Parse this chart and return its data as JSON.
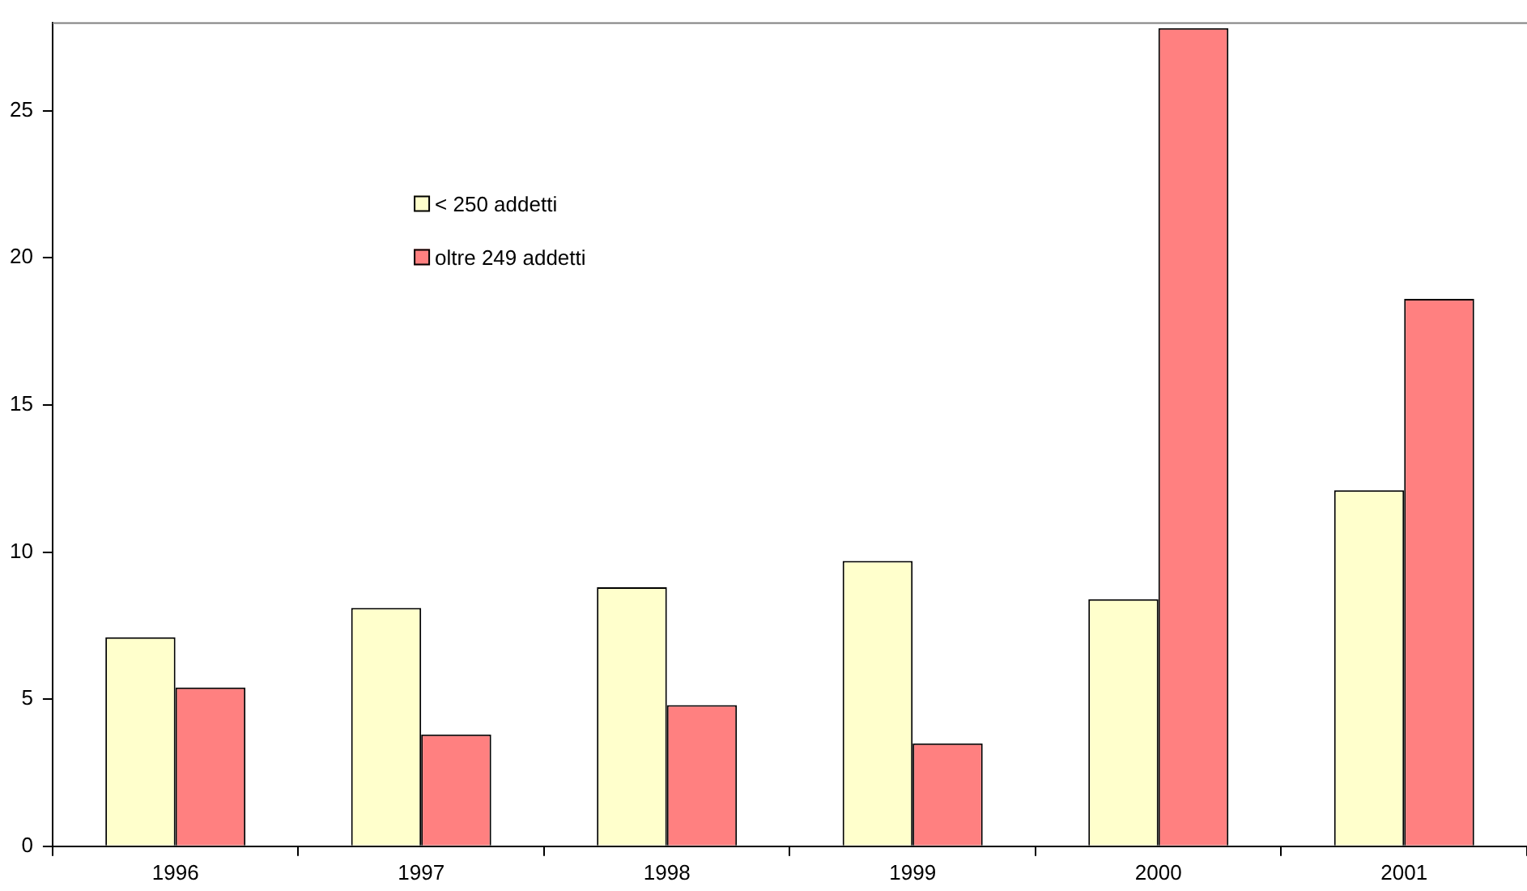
{
  "chart_data": {
    "type": "bar",
    "categories": [
      "1996",
      "1997",
      "1998",
      "1999",
      "2000",
      "2001"
    ],
    "series": [
      {
        "name": "< 250 addetti",
        "color": "#ffffcc",
        "values": [
          7.1,
          8.1,
          8.8,
          9.7,
          8.4,
          12.1
        ]
      },
      {
        "name": "oltre 249 addetti",
        "color": "#ff8080",
        "values": [
          5.4,
          3.8,
          4.8,
          3.5,
          27.8,
          18.6
        ]
      }
    ],
    "ylim": [
      0,
      28
    ],
    "yticks": [
      0,
      5,
      10,
      15,
      20,
      25
    ],
    "grid": false,
    "legend": "top left"
  }
}
